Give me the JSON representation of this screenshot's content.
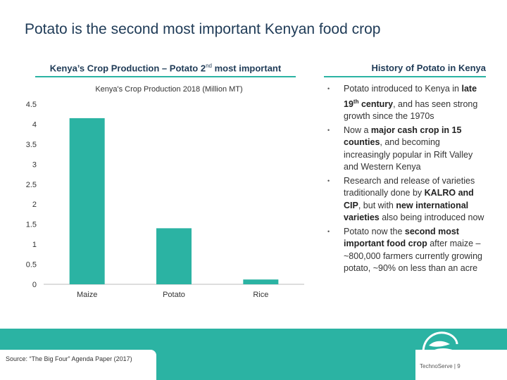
{
  "slide": {
    "title": "Potato is the second most important Kenyan food crop"
  },
  "left_section": {
    "header_pre": "Kenya’s Crop Production – Potato 2",
    "header_sup": "nd",
    "header_post": " most important"
  },
  "right_section": {
    "header": "History of Potato in Kenya",
    "bullets": [
      [
        {
          "t": "Potato introduced to Kenya in "
        },
        {
          "t": "late 19",
          "b": true
        },
        {
          "t": "th",
          "b": true,
          "sup": true
        },
        {
          "t": " century",
          "b": true
        },
        {
          "t": ", and has seen strong growth since the 1970s"
        }
      ],
      [
        {
          "t": "Now a "
        },
        {
          "t": "major cash crop in 15 counties",
          "b": true
        },
        {
          "t": ", and becoming increasingly popular in Rift Valley and Western Kenya"
        }
      ],
      [
        {
          "t": "Research and release of varieties traditionally done by "
        },
        {
          "t": "KALRO and CIP",
          "b": true
        },
        {
          "t": ", but with "
        },
        {
          "t": "new international varieties",
          "b": true
        },
        {
          "t": " also being introduced now"
        }
      ],
      [
        {
          "t": "Potato now the "
        },
        {
          "t": "second most important food crop",
          "b": true
        },
        {
          "t": " after maize – ~800,000 farmers currently growing potato, ~90% on less than an acre"
        }
      ]
    ]
  },
  "chart_data": {
    "type": "bar",
    "title": "Kenya's Crop Production 2018 (Million MT)",
    "categories": [
      "Maize",
      "Potato",
      "Rice"
    ],
    "values": [
      4.15,
      1.4,
      0.12
    ],
    "ylim": [
      0,
      4.5
    ],
    "yticks": [
      "0",
      "0.5",
      "1",
      "1.5",
      "2",
      "2.5",
      "3",
      "3.5",
      "4",
      "4.5"
    ],
    "bar_color": "#2bb3a3",
    "grid": false,
    "legend": "none"
  },
  "footer": {
    "source": "Source: “The Big Four” Agenda Paper (2017)",
    "brand": "TechnoServe | 9",
    "band_color": "#2bb3a3"
  },
  "icons": {
    "logo": "technoserve-logo-icon"
  }
}
